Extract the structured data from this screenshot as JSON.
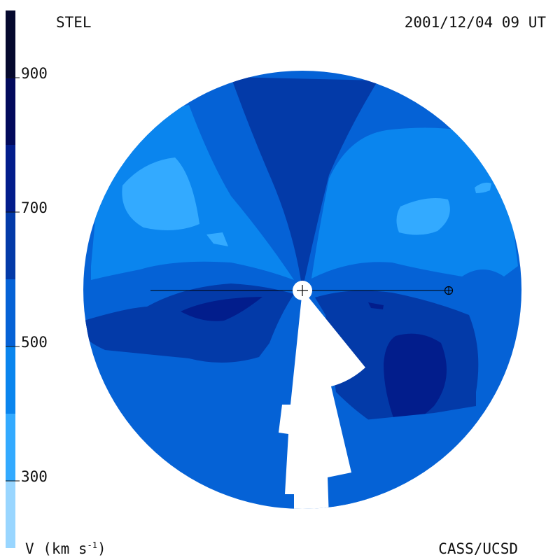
{
  "labels": {
    "instrument": "STEL",
    "datetime": "2001/12/04 09 UT",
    "credit": "CASS/UCSD",
    "unit_base": "V (km s",
    "unit_exp": "-1",
    "unit_close": ")"
  },
  "chart_data": {
    "type": "heatmap",
    "title": "",
    "quantity": "V (km s-1)",
    "colorbar": {
      "range": [
        200,
        1000
      ],
      "ticks": [
        300,
        500,
        700,
        900
      ],
      "levels": [
        {
          "from": 200,
          "to": 300,
          "color": "#99d6ff"
        },
        {
          "from": 300,
          "to": 400,
          "color": "#33aaff"
        },
        {
          "from": 400,
          "to": 500,
          "color": "#0a85ee"
        },
        {
          "from": 500,
          "to": 600,
          "color": "#0562d6"
        },
        {
          "from": 600,
          "to": 700,
          "color": "#033aa8"
        },
        {
          "from": 700,
          "to": 800,
          "color": "#021d8c"
        },
        {
          "from": 800,
          "to": 900,
          "color": "#020a5c"
        },
        {
          "from": 900,
          "to": 1000,
          "color": "#05092e"
        }
      ]
    },
    "regions": [
      {
        "name": "background",
        "level": 500
      },
      {
        "name": "north-stream",
        "level": 600
      },
      {
        "name": "nw-fast",
        "level": 400
      },
      {
        "name": "nw-fastest",
        "level": 300
      },
      {
        "name": "ne-fast",
        "level": 400
      },
      {
        "name": "ne-fastest",
        "level": 300
      },
      {
        "name": "west-band",
        "level": 600
      },
      {
        "name": "west-core",
        "level": 700
      },
      {
        "name": "east-band",
        "level": 600
      },
      {
        "name": "east-core",
        "level": 700
      },
      {
        "name": "south-sector",
        "level": 500
      }
    ],
    "markers": [
      {
        "name": "sun",
        "symbol": "+"
      },
      {
        "name": "earth",
        "symbol": "⊕"
      }
    ]
  }
}
